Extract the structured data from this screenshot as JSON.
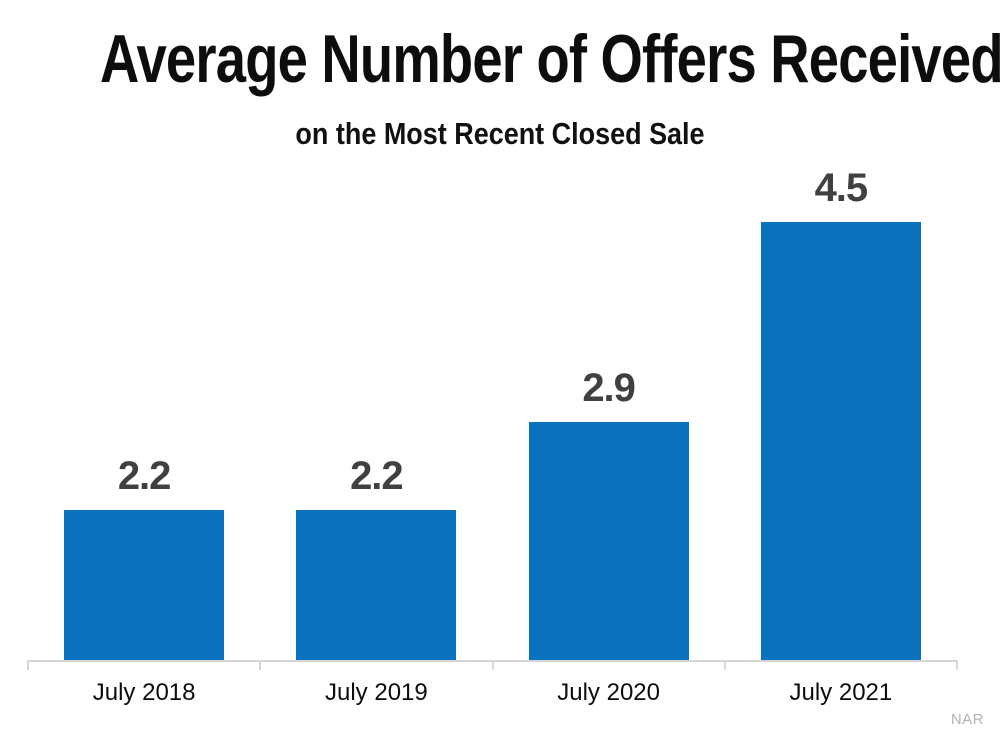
{
  "chart_data": {
    "type": "bar",
    "title": "Average Number of Offers Received",
    "subtitle": "on the Most Recent Closed Sale",
    "categories": [
      "July 2018",
      "July 2019",
      "July 2020",
      "July 2021"
    ],
    "values": [
      2.2,
      2.2,
      2.9,
      4.5
    ],
    "value_labels": [
      "2.2",
      "2.2",
      "2.9",
      "4.5"
    ],
    "series_name": "Average number of offers received on the most recent closed sale",
    "xlabel": "",
    "ylabel": "",
    "ylim": [
      1,
      4.85
    ],
    "grid": false,
    "legend": false,
    "bar_color": "#0a71bd",
    "value_label_color": "#404040",
    "axis_line_color": "#d6d6d6",
    "source": "NAR",
    "source_color": "#b3b3b3"
  }
}
